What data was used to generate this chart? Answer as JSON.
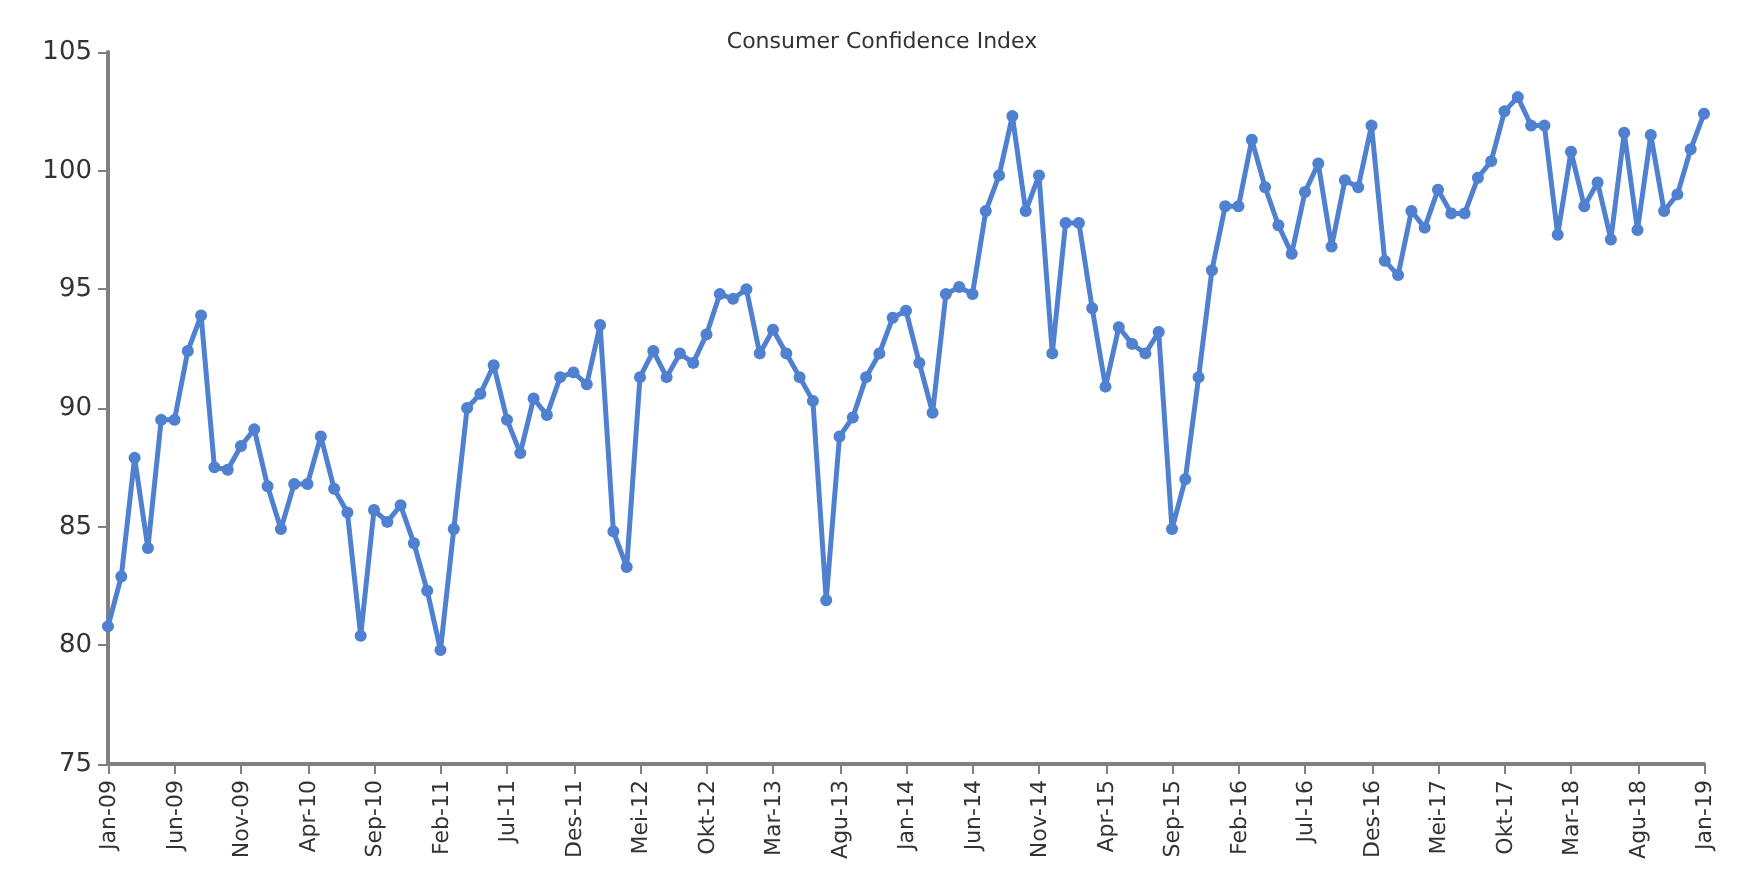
{
  "chart_data": {
    "type": "line",
    "title": "Consumer Confidence Index",
    "categories": [
      "Jan-09",
      null,
      null,
      null,
      null,
      "Jun-09",
      null,
      null,
      null,
      null,
      "Nov-09",
      null,
      null,
      null,
      null,
      "Apr-10",
      null,
      null,
      null,
      null,
      "Sep-10",
      null,
      null,
      null,
      null,
      "Feb-11",
      null,
      null,
      null,
      null,
      "Jul-11",
      null,
      null,
      null,
      null,
      "Des-11",
      null,
      null,
      null,
      null,
      "Mei-12",
      null,
      null,
      null,
      null,
      "Okt-12",
      null,
      null,
      null,
      null,
      "Mar-13",
      null,
      null,
      null,
      null,
      "Agu-13",
      null,
      null,
      null,
      null,
      "Jan-14",
      null,
      null,
      null,
      null,
      "Jun-14",
      null,
      null,
      null,
      null,
      "Nov-14",
      null,
      null,
      null,
      null,
      "Apr-15",
      null,
      null,
      null,
      null,
      "Sep-15",
      null,
      null,
      null,
      null,
      "Feb-16",
      null,
      null,
      null,
      null,
      "Jul-16",
      null,
      null,
      null,
      null,
      "Des-16",
      null,
      null,
      null,
      null,
      "Mei-17",
      null,
      null,
      null,
      null,
      "Okt-17",
      null,
      null,
      null,
      null,
      "Mar-18",
      null,
      null,
      null,
      null,
      "Agu-18",
      null,
      null,
      null,
      null,
      "Jan-19"
    ],
    "series": [
      {
        "color": "#4f81d0",
        "values": [
          80.8,
          82.9,
          87.9,
          84.1,
          89.5,
          89.5,
          92.4,
          93.9,
          87.5,
          87.4,
          88.4,
          89.1,
          86.7,
          84.9,
          86.8,
          86.8,
          88.8,
          86.6,
          85.6,
          80.4,
          85.7,
          85.2,
          85.9,
          84.3,
          82.3,
          79.8,
          84.9,
          90.0,
          90.6,
          91.8,
          89.5,
          88.1,
          90.4,
          89.7,
          91.3,
          91.5,
          91.0,
          93.5,
          84.8,
          83.3,
          91.3,
          92.4,
          91.3,
          92.3,
          91.9,
          93.1,
          94.8,
          94.6,
          95.0,
          92.3,
          93.3,
          92.3,
          91.3,
          90.3,
          81.9,
          88.8,
          89.6,
          91.3,
          92.3,
          93.8,
          94.1,
          91.9,
          89.8,
          94.8,
          95.1,
          94.8,
          98.3,
          99.8,
          102.3,
          98.3,
          99.8,
          92.3,
          97.8,
          97.8,
          94.2,
          90.9,
          93.4,
          92.7,
          92.3,
          93.2,
          84.9,
          87.0,
          91.3,
          95.8,
          98.5,
          98.5,
          101.3,
          99.3,
          97.7,
          96.5,
          99.1,
          100.3,
          96.8,
          99.6,
          99.3,
          101.9,
          96.2,
          95.6,
          98.3,
          97.6,
          99.2,
          98.2,
          98.2,
          99.7,
          100.4,
          102.5,
          103.1,
          101.9,
          101.9,
          97.3,
          100.8,
          98.5,
          99.5,
          97.1,
          101.6,
          97.5,
          101.5,
          98.3,
          99.0,
          100.9,
          102.4
        ]
      }
    ],
    "ylim": [
      75,
      105
    ],
    "yticks": [
      75,
      80,
      85,
      90,
      95,
      100,
      105
    ],
    "grid": false,
    "marker": "circle",
    "line_style": "solid"
  }
}
